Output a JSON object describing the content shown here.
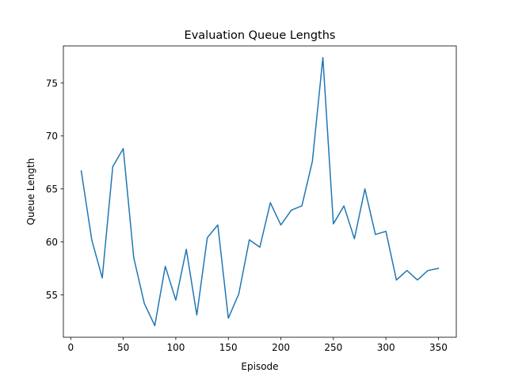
{
  "chart_data": {
    "type": "line",
    "title": "Evaluation Queue Lengths",
    "xlabel": "Episode",
    "ylabel": "Queue Length",
    "xlim": [
      -7,
      367
    ],
    "ylim": [
      51.0,
      78.5
    ],
    "xticks": [
      0,
      50,
      100,
      150,
      200,
      250,
      300,
      350
    ],
    "yticks": [
      55,
      60,
      65,
      70,
      75
    ],
    "grid": false,
    "series": [
      {
        "color": "#1f77b4",
        "x": [
          10,
          20,
          30,
          40,
          50,
          60,
          70,
          80,
          90,
          100,
          110,
          120,
          130,
          140,
          150,
          160,
          170,
          180,
          190,
          200,
          210,
          220,
          230,
          240,
          250,
          260,
          270,
          280,
          290,
          300,
          310,
          320,
          330,
          340,
          350
        ],
        "y": [
          66.7,
          60.2,
          56.6,
          67.1,
          68.8,
          58.5,
          54.2,
          52.1,
          57.7,
          54.5,
          59.3,
          53.1,
          60.4,
          61.6,
          52.8,
          55.1,
          60.2,
          59.5,
          63.7,
          61.6,
          63.0,
          63.4,
          67.6,
          77.4,
          61.7,
          63.4,
          60.3,
          65.0,
          60.7,
          61.0,
          56.4,
          57.3,
          56.4,
          57.3,
          57.5
        ]
      }
    ]
  }
}
